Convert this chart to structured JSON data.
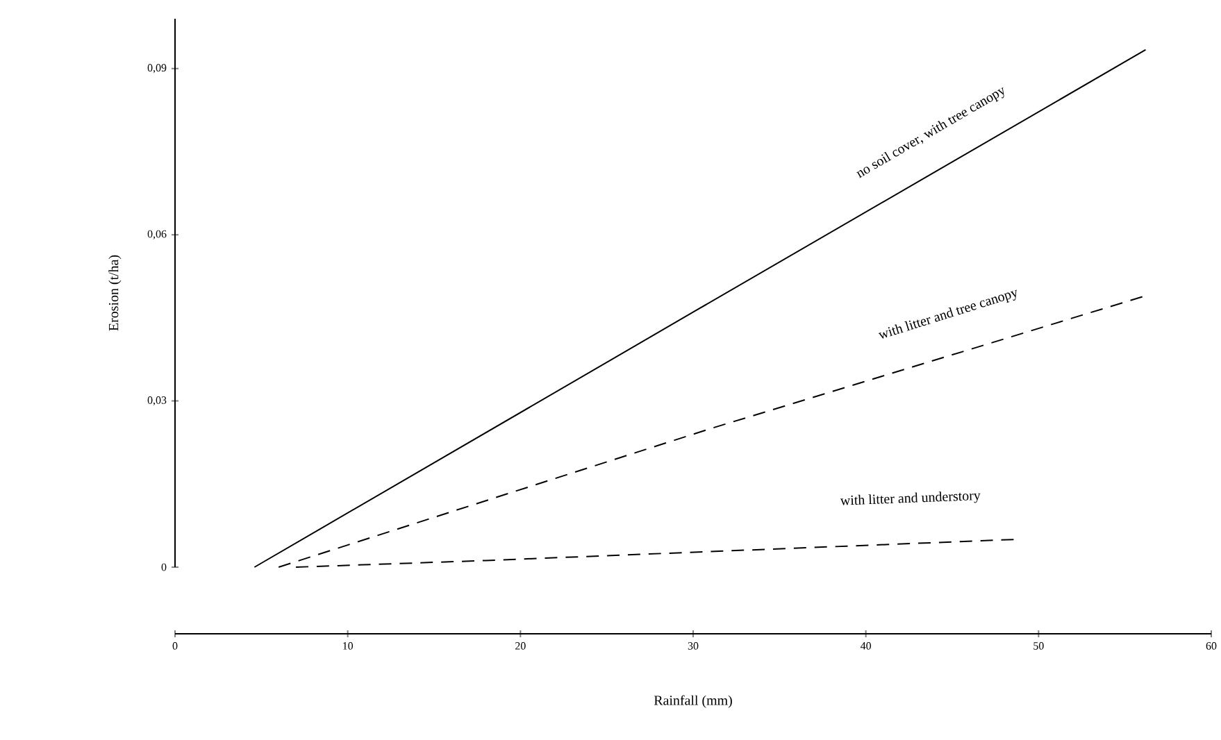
{
  "chart_data": {
    "type": "line",
    "xlabel": "Rainfall (mm)",
    "ylabel": "Erosion (t/ha)",
    "xlim": [
      0,
      60
    ],
    "xticks": [
      0,
      10,
      20,
      30,
      40,
      50,
      60
    ],
    "ylim": [
      0,
      0.099
    ],
    "yticks": [
      0,
      {
        "value": 0.03,
        "label": "0,03"
      },
      {
        "value": 0.06,
        "label": "0,06"
      },
      {
        "value": 0.09,
        "label": "0,09"
      }
    ],
    "legend": false,
    "marker": "none",
    "series": [
      {
        "name": "no soil cover, with tree canopy",
        "color": "#000000",
        "line_style": "solid",
        "x": [
          4.6,
          30.2,
          56.2
        ],
        "values": [
          0,
          0.0464,
          0.0934
        ]
      },
      {
        "name": "with litter and tree canopy",
        "color": "#000000",
        "line_style": "dashed",
        "x": [
          6,
          14,
          31,
          56.2
        ],
        "values": [
          0,
          0.008,
          0.025,
          0.049
        ]
      },
      {
        "name": "with litter and understory",
        "color": "#000000",
        "line_style": "dashed",
        "x": [
          7,
          18,
          48.6
        ],
        "values": [
          0,
          0.0012,
          0.005
        ]
      }
    ]
  }
}
